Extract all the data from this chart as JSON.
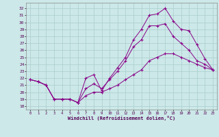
{
  "xlabel": "Windchill (Refroidissement éolien,°C)",
  "bg_color": "#cce8e8",
  "line_color": "#880088",
  "grid_color": "#aacccc",
  "x_ticks": [
    0,
    1,
    2,
    3,
    4,
    5,
    6,
    7,
    8,
    9,
    10,
    11,
    12,
    13,
    14,
    15,
    16,
    17,
    18,
    19,
    20,
    21,
    22,
    23
  ],
  "y_ticks": [
    18,
    19,
    20,
    21,
    22,
    23,
    24,
    25,
    26,
    27,
    28,
    29,
    30,
    31,
    32
  ],
  "xlim": [
    -0.5,
    23.5
  ],
  "ylim": [
    17.5,
    32.8
  ],
  "line1_x": [
    0,
    1,
    2,
    3,
    4,
    5,
    6,
    7,
    8,
    9,
    10,
    11,
    12,
    13,
    14,
    15,
    16,
    17,
    18,
    19,
    20,
    21,
    22,
    23
  ],
  "line1_y": [
    21.8,
    21.5,
    21.0,
    19.0,
    19.0,
    19.0,
    18.5,
    22.0,
    22.5,
    20.2,
    22.0,
    23.5,
    25.0,
    27.5,
    29.0,
    31.0,
    31.2,
    32.0,
    30.2,
    29.0,
    28.8,
    26.8,
    24.8,
    23.2
  ],
  "line2_x": [
    0,
    1,
    2,
    3,
    4,
    5,
    6,
    7,
    8,
    9,
    10,
    11,
    12,
    13,
    14,
    15,
    16,
    17,
    18,
    19,
    20,
    21,
    22,
    23
  ],
  "line2_y": [
    21.8,
    21.5,
    21.0,
    19.0,
    19.0,
    19.0,
    18.5,
    20.5,
    21.2,
    20.5,
    21.8,
    23.0,
    24.5,
    26.5,
    27.5,
    29.5,
    29.5,
    29.8,
    28.0,
    27.0,
    26.0,
    24.5,
    24.0,
    23.2
  ],
  "line3_x": [
    0,
    1,
    2,
    3,
    4,
    5,
    6,
    7,
    8,
    9,
    10,
    11,
    12,
    13,
    14,
    15,
    16,
    17,
    18,
    19,
    20,
    21,
    22,
    23
  ],
  "line3_y": [
    21.8,
    21.5,
    21.0,
    19.0,
    19.0,
    19.0,
    18.5,
    19.5,
    20.0,
    20.0,
    20.5,
    21.0,
    21.8,
    22.5,
    23.2,
    24.5,
    25.0,
    25.5,
    25.5,
    25.0,
    24.5,
    24.0,
    23.5,
    23.2
  ]
}
